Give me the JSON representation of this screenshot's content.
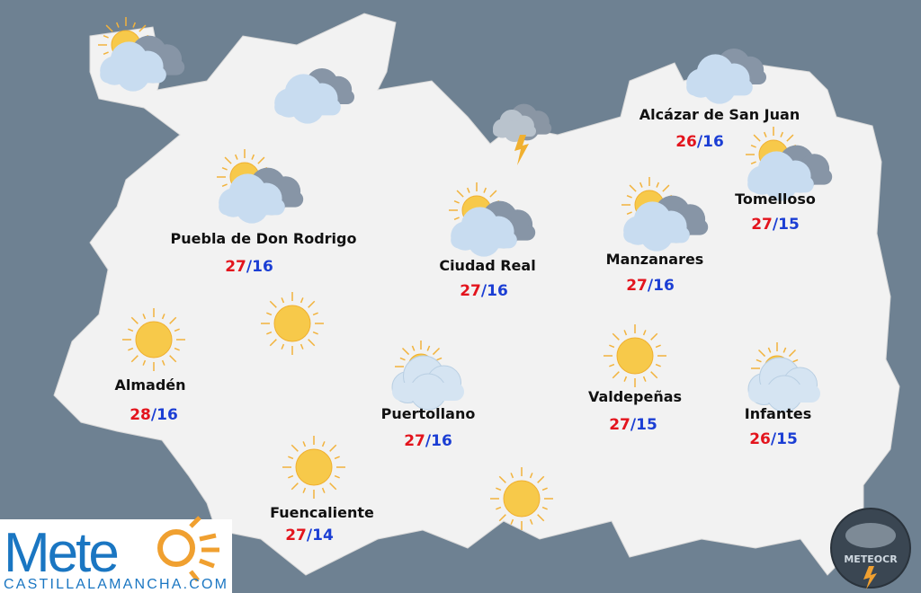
{
  "cities": [
    {
      "name": "Alcázar de San Juan",
      "max": "26",
      "min": "16"
    },
    {
      "name": "Tomelloso",
      "max": "27",
      "min": "15"
    },
    {
      "name": "Puebla de Don Rodrigo",
      "max": "27",
      "min": "16"
    },
    {
      "name": "Ciudad Real",
      "max": "27",
      "min": "16"
    },
    {
      "name": "Manzanares",
      "max": "27",
      "min": "16"
    },
    {
      "name": "Almadén",
      "max": "28",
      "min": "16"
    },
    {
      "name": "Puertollano",
      "max": "27",
      "min": "16"
    },
    {
      "name": "Valdepeñas",
      "max": "27",
      "min": "15"
    },
    {
      "name": "Infantes",
      "max": "26",
      "min": "15"
    },
    {
      "name": "Fuencaliente",
      "max": "27",
      "min": "14"
    }
  ],
  "temp_separator": "/",
  "logo": {
    "text": "Mete",
    "site": "CASTILLALAMANCHA.COM"
  },
  "badge": "METEOCR"
}
